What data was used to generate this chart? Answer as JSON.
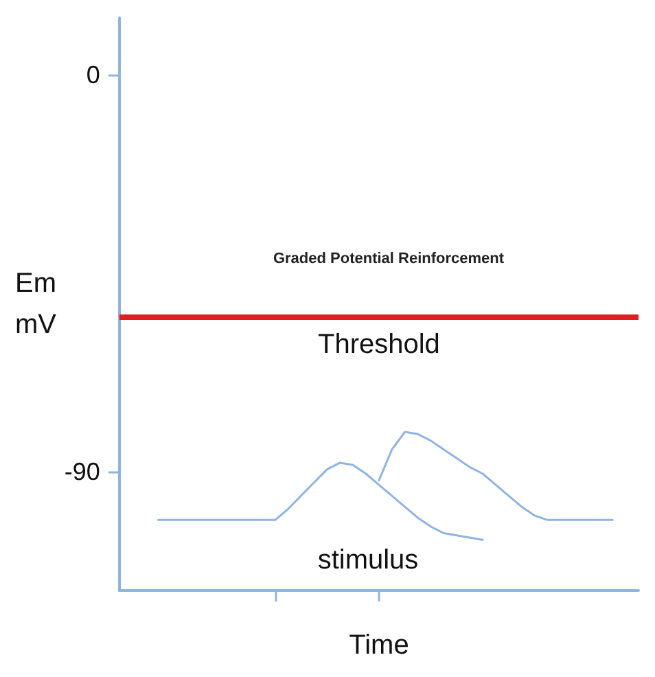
{
  "chart_data": {
    "type": "line",
    "title": "Graded Potential Reinforcement",
    "xlabel": "Time",
    "ylabel": "Em\nmV",
    "categories": [
      null,
      null,
      null,
      null,
      null,
      null,
      null,
      null,
      null,
      null,
      null,
      null,
      null,
      null,
      null,
      null,
      null,
      null,
      null,
      null,
      null,
      null,
      null,
      null,
      null,
      null,
      null,
      null,
      null,
      null,
      null,
      null,
      null,
      null,
      null,
      null,
      null,
      null,
      null,
      null,
      null
    ],
    "ylim": [
      -117,
      13
    ],
    "yticks": [
      0,
      -90
    ],
    "tick_labels": "y",
    "marker": "none",
    "line_style": "solid",
    "series": [
      {
        "color": "#8eb4e3",
        "values": [
          null,
          null,
          null,
          -101,
          -101,
          -101,
          -101,
          -101,
          -101,
          -101,
          -101,
          -101,
          -101,
          -98.5,
          -95.5,
          -92.5,
          -89.5,
          -88,
          -88.5,
          -90.5,
          -93,
          -95.5,
          -98,
          -100.5,
          -102.5,
          -104,
          -104.5,
          -105,
          -105.5,
          null,
          null,
          null,
          null,
          null,
          null,
          null,
          null,
          null,
          null,
          null,
          null
        ]
      },
      {
        "color": "#8eb4e3",
        "values": [
          null,
          null,
          null,
          null,
          null,
          null,
          null,
          null,
          null,
          null,
          null,
          null,
          null,
          null,
          null,
          null,
          null,
          null,
          null,
          null,
          -92,
          -85,
          -81,
          -81.5,
          -83,
          -85,
          -87,
          -89,
          -90.5,
          -93,
          -95.5,
          -98,
          -100,
          -101,
          -101,
          -101,
          -101,
          -101,
          -101,
          null,
          null
        ]
      }
    ],
    "ref_lines": [
      {
        "axis": "y",
        "value": -55,
        "label": "Threshold",
        "color": "#e02020"
      }
    ],
    "annotations": [
      "stimulus"
    ]
  }
}
